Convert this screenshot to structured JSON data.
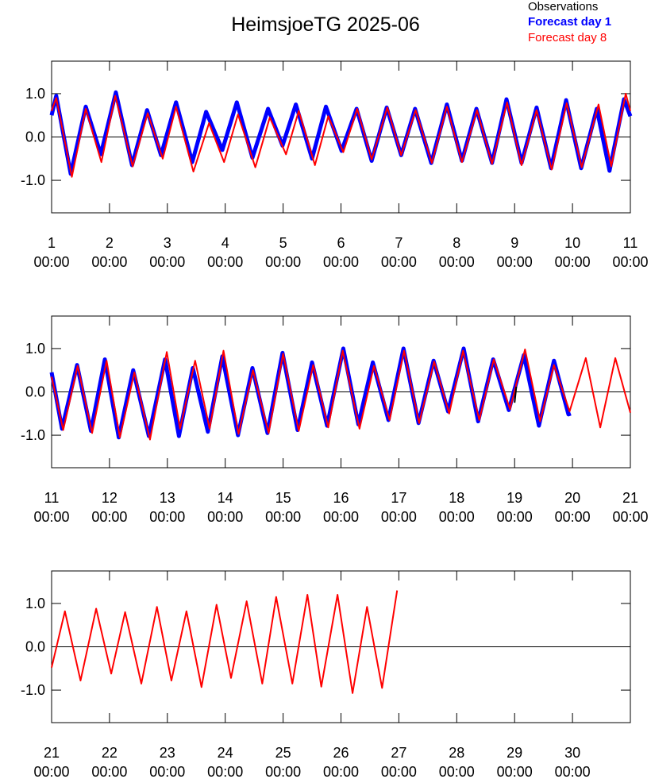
{
  "title": "HeimsjoeTG 2025-06",
  "legend": [
    {
      "name": "Observations",
      "color": "#000000"
    },
    {
      "name": "Forecast day 1",
      "color": "#0000ff"
    },
    {
      "name": "Forecast day 8",
      "color": "#ff0000"
    }
  ],
  "chart_data": [
    {
      "type": "line",
      "xlim": [
        1,
        11
      ],
      "ylim": [
        -1.75,
        1.75
      ],
      "yticks": [
        {
          "value": -1,
          "label": "-1.0"
        },
        {
          "value": 0,
          "label": "0.0"
        },
        {
          "value": 1,
          "label": "1.0"
        }
      ],
      "xticks": [
        {
          "value": 1,
          "label": [
            "1",
            "00:00"
          ]
        },
        {
          "value": 2,
          "label": [
            "2",
            "00:00"
          ]
        },
        {
          "value": 3,
          "label": [
            "3",
            "00:00"
          ]
        },
        {
          "value": 4,
          "label": [
            "4",
            "00:00"
          ]
        },
        {
          "value": 5,
          "label": [
            "5",
            "00:00"
          ]
        },
        {
          "value": 6,
          "label": [
            "6",
            "00:00"
          ]
        },
        {
          "value": 7,
          "label": [
            "7",
            "00:00"
          ]
        },
        {
          "value": 8,
          "label": [
            "8",
            "00:00"
          ]
        },
        {
          "value": 9,
          "label": [
            "9",
            "00:00"
          ]
        },
        {
          "value": 10,
          "label": [
            "10",
            "00:00"
          ]
        },
        {
          "value": 11,
          "label": [
            "11",
            "00:00"
          ]
        }
      ],
      "series": [
        {
          "color": "#0000ff",
          "width": 5,
          "x": [
            1,
            1.08,
            1.33,
            1.59,
            1.85,
            2.11,
            2.39,
            2.65,
            2.89,
            3.15,
            3.43,
            3.67,
            3.95,
            4.2,
            4.47,
            4.74,
            4.99,
            5.22,
            5.5,
            5.74,
            6.01,
            6.27,
            6.53,
            6.79,
            7.04,
            7.28,
            7.56,
            7.83,
            8.09,
            8.34,
            8.61,
            8.86,
            9.12,
            9.38,
            9.63,
            9.89,
            10.15,
            10.42,
            10.64,
            10.89,
            11
          ],
          "values": [
            0.5,
            0.95,
            -0.85,
            0.7,
            -0.4,
            1.03,
            -0.65,
            0.62,
            -0.42,
            0.8,
            -0.58,
            0.58,
            -0.3,
            0.8,
            -0.48,
            0.65,
            -0.2,
            0.75,
            -0.5,
            0.7,
            -0.32,
            0.65,
            -0.55,
            0.68,
            -0.42,
            0.65,
            -0.6,
            0.75,
            -0.55,
            0.65,
            -0.6,
            0.87,
            -0.6,
            0.68,
            -0.72,
            0.85,
            -0.72,
            0.65,
            -0.78,
            0.87,
            0.48
          ]
        },
        {
          "color": "#ff0000",
          "width": 2,
          "x": [
            1,
            1.08,
            1.35,
            1.59,
            1.86,
            2.1,
            2.4,
            2.66,
            2.92,
            3.15,
            3.45,
            3.72,
            3.98,
            4.22,
            4.52,
            4.77,
            5.05,
            5.27,
            5.55,
            5.78,
            6.04,
            6.28,
            6.53,
            6.8,
            7.04,
            7.29,
            7.57,
            7.83,
            8.09,
            8.35,
            8.61,
            8.87,
            9.12,
            9.38,
            9.64,
            9.9,
            10.16,
            10.45,
            10.67,
            10.92,
            11
          ],
          "values": [
            0.6,
            0.9,
            -0.92,
            0.65,
            -0.58,
            0.95,
            -0.68,
            0.55,
            -0.5,
            0.7,
            -0.8,
            0.32,
            -0.58,
            0.52,
            -0.7,
            0.45,
            -0.4,
            0.6,
            -0.65,
            0.48,
            -0.35,
            0.65,
            -0.52,
            0.68,
            -0.42,
            0.62,
            -0.6,
            0.7,
            -0.58,
            0.62,
            -0.62,
            0.8,
            -0.65,
            0.62,
            -0.75,
            0.78,
            -0.7,
            0.75,
            -0.68,
            1.0,
            0.6
          ]
        }
      ]
    },
    {
      "type": "line",
      "xlim": [
        11,
        21
      ],
      "ylim": [
        -1.75,
        1.75
      ],
      "yticks": [
        {
          "value": -1,
          "label": "-1.0"
        },
        {
          "value": 0,
          "label": "0.0"
        },
        {
          "value": 1,
          "label": "1.0"
        }
      ],
      "xticks": [
        {
          "value": 11,
          "label": [
            "11",
            "00:00"
          ]
        },
        {
          "value": 12,
          "label": [
            "12",
            "00:00"
          ]
        },
        {
          "value": 13,
          "label": [
            "13",
            "00:00"
          ]
        },
        {
          "value": 14,
          "label": [
            "14",
            "00:00"
          ]
        },
        {
          "value": 15,
          "label": [
            "15",
            "00:00"
          ]
        },
        {
          "value": 16,
          "label": [
            "16",
            "00:00"
          ]
        },
        {
          "value": 17,
          "label": [
            "17",
            "00:00"
          ]
        },
        {
          "value": 18,
          "label": [
            "18",
            "00:00"
          ]
        },
        {
          "value": 19,
          "label": [
            "19",
            "00:00"
          ]
        },
        {
          "value": 20,
          "label": [
            "20",
            "00:00"
          ]
        },
        {
          "value": 21,
          "label": [
            "21",
            "00:00"
          ]
        }
      ],
      "series": [
        {
          "color": "#0000ff",
          "width": 5,
          "x": [
            11,
            11.18,
            11.44,
            11.68,
            11.92,
            12.16,
            12.41,
            12.68,
            12.96,
            13.2,
            13.44,
            13.7,
            13.95,
            14.22,
            14.47,
            14.73,
            14.99,
            15.25,
            15.5,
            15.76,
            16.04,
            16.3,
            16.55,
            16.82,
            17.08,
            17.34,
            17.6,
            17.85,
            18.12,
            18.37,
            18.63,
            18.9,
            19.16,
            19.42,
            19.68,
            19.93,
            19.97
          ],
          "values": [
            0.45,
            -0.85,
            0.62,
            -0.9,
            0.75,
            -1.05,
            0.5,
            -1.02,
            0.75,
            -1.02,
            0.55,
            -0.92,
            0.82,
            -1.0,
            0.55,
            -0.95,
            0.9,
            -0.88,
            0.68,
            -0.78,
            1.0,
            -0.75,
            0.68,
            -0.65,
            1.0,
            -0.72,
            0.72,
            -0.45,
            1.0,
            -0.68,
            0.75,
            -0.42,
            0.85,
            -0.78,
            0.72,
            -0.52,
            -0.5
          ]
        },
        {
          "color": "#ff0000",
          "width": 2,
          "x": [
            11,
            11.2,
            11.45,
            11.7,
            11.95,
            12.18,
            12.43,
            12.7,
            12.99,
            13.22,
            13.48,
            13.73,
            13.97,
            14.23,
            14.48,
            14.75,
            15.0,
            15.27,
            15.52,
            15.78,
            16.03,
            16.32,
            16.57,
            16.84,
            17.09,
            17.35,
            17.61,
            17.87,
            18.11,
            18.39,
            18.64,
            18.92,
            19.18,
            19.44,
            19.68,
            19.95,
            20.23,
            20.48,
            20.74,
            21
          ],
          "values": [
            0.35,
            -0.88,
            0.6,
            -0.95,
            0.72,
            -1.05,
            0.45,
            -1.1,
            0.92,
            -0.85,
            0.72,
            -0.85,
            0.95,
            -0.97,
            0.5,
            -0.95,
            0.88,
            -0.9,
            0.62,
            -0.82,
            0.95,
            -0.85,
            0.6,
            -0.65,
            0.95,
            -0.72,
            0.7,
            -0.5,
            0.95,
            -0.65,
            0.75,
            -0.4,
            0.98,
            -0.68,
            0.62,
            -0.45,
            0.78,
            -0.82,
            0.78,
            -0.48
          ]
        },
        {
          "color": "#000000",
          "width": 2,
          "x": [
            19.0,
            19.03
          ],
          "values": [
            -0.25,
            0.12
          ]
        }
      ]
    },
    {
      "type": "line",
      "xlim": [
        21,
        31
      ],
      "ylim": [
        -1.75,
        1.75
      ],
      "yticks": [
        {
          "value": -1,
          "label": "-1.0"
        },
        {
          "value": 0,
          "label": "0.0"
        },
        {
          "value": 1,
          "label": "1.0"
        }
      ],
      "xticks": [
        {
          "value": 21,
          "label": [
            "21",
            "00:00"
          ]
        },
        {
          "value": 22,
          "label": [
            "22",
            "00:00"
          ]
        },
        {
          "value": 23,
          "label": [
            "23",
            "00:00"
          ]
        },
        {
          "value": 24,
          "label": [
            "24",
            "00:00"
          ]
        },
        {
          "value": 25,
          "label": [
            "25",
            "00:00"
          ]
        },
        {
          "value": 26,
          "label": [
            "26",
            "00:00"
          ]
        },
        {
          "value": 27,
          "label": [
            "27",
            "00:00"
          ]
        },
        {
          "value": 28,
          "label": [
            "28",
            "00:00"
          ]
        },
        {
          "value": 29,
          "label": [
            "29",
            "00:00"
          ]
        },
        {
          "value": 30,
          "label": [
            "30",
            "00:00"
          ]
        }
      ],
      "series": [
        {
          "color": "#ff0000",
          "width": 2,
          "x": [
            21,
            21.23,
            21.5,
            21.77,
            22.03,
            22.27,
            22.55,
            22.82,
            23.07,
            23.33,
            23.59,
            23.85,
            24.1,
            24.37,
            24.64,
            24.88,
            25.16,
            25.42,
            25.66,
            25.94,
            26.2,
            26.45,
            26.71,
            26.97
          ],
          "values": [
            -0.48,
            0.82,
            -0.78,
            0.88,
            -0.62,
            0.8,
            -0.85,
            0.92,
            -0.78,
            0.82,
            -0.93,
            0.97,
            -0.72,
            1.05,
            -0.85,
            1.15,
            -0.85,
            1.2,
            -0.92,
            1.2,
            -1.07,
            0.92,
            -0.95,
            1.3
          ]
        }
      ]
    }
  ]
}
